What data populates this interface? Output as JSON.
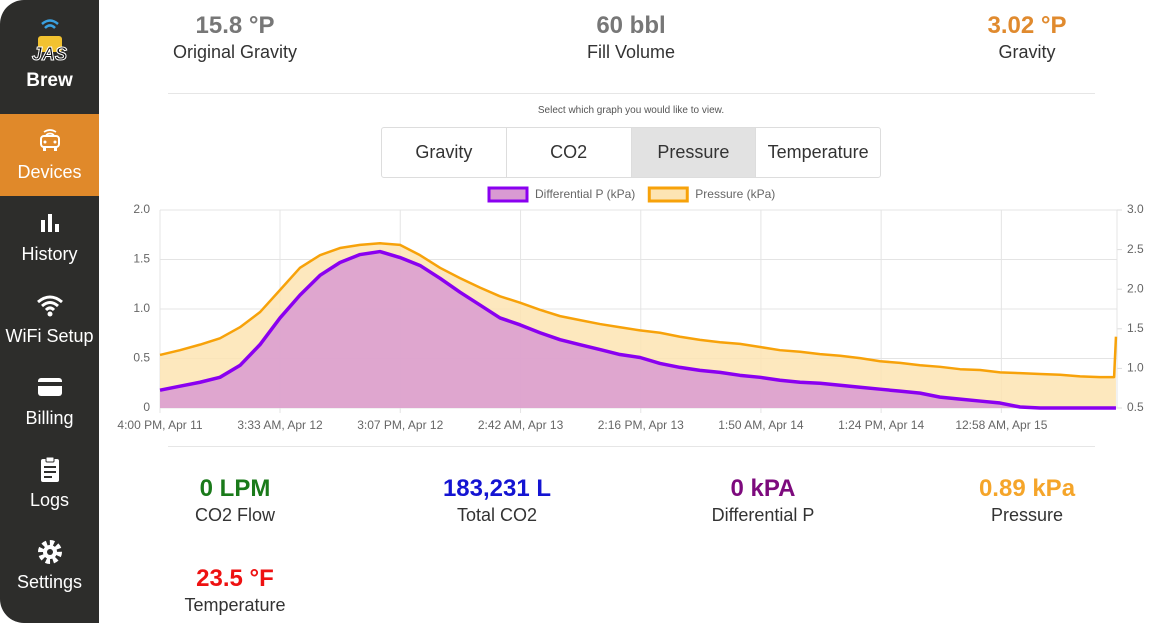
{
  "sidebar": {
    "logo": [
      "JAS",
      "Brew"
    ],
    "menu": [
      "Devices",
      "History",
      "WiFi Setup",
      "Billing",
      "Logs",
      "Settings"
    ],
    "active_index": 0
  },
  "stats_top": [
    {
      "value": "15.8 °P",
      "label": "Original Gravity",
      "color": "#777777"
    },
    {
      "value": "60 bbl",
      "label": "Fill Volume",
      "color": "#777777"
    },
    {
      "value": "3.02 °P",
      "label": "Gravity",
      "color": "#e08a2e"
    }
  ],
  "graph_selector": {
    "hint": "Select which graph you would like to view.",
    "tabs": [
      "Gravity",
      "CO2",
      "Pressure",
      "Temperature"
    ],
    "active_index": 2
  },
  "chart_data": {
    "type": "area",
    "x": [
      0,
      1.92,
      3.85,
      5.77,
      7.7,
      9.62,
      11.55,
      13.47,
      15.4,
      17.32,
      19.25,
      21.17,
      23.1,
      25.02,
      26.95,
      28.87,
      30.8,
      32.72,
      34.65,
      36.57,
      38.5,
      40.42,
      42.35,
      44.27,
      46.2,
      48.12,
      50.05,
      51.97,
      53.9,
      55.82,
      57.75,
      59.67,
      61.6,
      63.52,
      65.45,
      67.37,
      69.3,
      71.22,
      73.15,
      75.07,
      77,
      78.92,
      80.85,
      82.77,
      84.7,
      86.62,
      88.55,
      90.47,
      91.82,
      92.0
    ],
    "series": [
      {
        "name": "Differential P (kPa)",
        "color": "#8a00f0",
        "fill_color": "#d99ad2",
        "axis": "y",
        "values": [
          0.18,
          0.22,
          0.26,
          0.31,
          0.43,
          0.64,
          0.91,
          1.14,
          1.34,
          1.47,
          1.55,
          1.58,
          1.52,
          1.44,
          1.31,
          1.17,
          1.04,
          0.91,
          0.84,
          0.76,
          0.69,
          0.64,
          0.59,
          0.54,
          0.51,
          0.45,
          0.41,
          0.38,
          0.36,
          0.33,
          0.31,
          0.28,
          0.26,
          0.25,
          0.23,
          0.21,
          0.19,
          0.17,
          0.15,
          0.11,
          0.09,
          0.07,
          0.05,
          0.01,
          0,
          0,
          0,
          0,
          0,
          0
        ]
      },
      {
        "name": "Pressure (kPa)",
        "color": "#f7a20a",
        "fill_color": "#fde4b3",
        "axis": "y2",
        "values": [
          1.17,
          1.23,
          1.3,
          1.38,
          1.52,
          1.71,
          1.99,
          2.27,
          2.43,
          2.52,
          2.56,
          2.58,
          2.56,
          2.43,
          2.27,
          2.14,
          2.02,
          1.91,
          1.83,
          1.74,
          1.66,
          1.61,
          1.56,
          1.52,
          1.48,
          1.45,
          1.4,
          1.36,
          1.33,
          1.31,
          1.27,
          1.23,
          1.21,
          1.18,
          1.16,
          1.13,
          1.09,
          1.07,
          1.04,
          1.02,
          0.99,
          0.98,
          0.95,
          0.94,
          0.93,
          0.92,
          0.9,
          0.89,
          0.89,
          1.4
        ]
      }
    ],
    "xlim": [
      0,
      92.1
    ],
    "xticks": [
      {
        "value": 0,
        "label": "4:00 PM, Apr 11"
      },
      {
        "value": 11.55,
        "label": "3:33 AM, Apr 12"
      },
      {
        "value": 23.12,
        "label": "3:07 PM, Apr 12"
      },
      {
        "value": 34.7,
        "label": "2:42 AM, Apr 13"
      },
      {
        "value": 46.27,
        "label": "2:16 PM, Apr 13"
      },
      {
        "value": 57.83,
        "label": "1:50 AM, Apr 14"
      },
      {
        "value": 69.4,
        "label": "1:24 PM, Apr 14"
      },
      {
        "value": 80.97,
        "label": "12:58 AM, Apr 15"
      }
    ],
    "ylim": [
      0,
      2
    ],
    "yticks": [
      0,
      0.5,
      {
        "value": 1,
        "label": "1.0"
      },
      1.5,
      {
        "value": 2,
        "label": "2.0"
      }
    ],
    "y2lim": [
      0.5,
      3
    ],
    "y2ticks": [
      0.5,
      {
        "value": 1,
        "label": "1.0"
      },
      1.5,
      {
        "value": 2,
        "label": "2.0"
      },
      2.5,
      {
        "value": 3,
        "label": "3.0"
      }
    ],
    "grid": true,
    "legend": "top"
  },
  "stats_bottom": [
    {
      "value": "0 LPM",
      "label": "CO2 Flow",
      "color": "#1a7a1a"
    },
    {
      "value": "183,231 L",
      "label": "Total CO2",
      "color": "#1414d2"
    },
    {
      "value": "0 kPA",
      "label": "Differential P",
      "color": "#7d0a7d"
    },
    {
      "value": "0.89 kPa",
      "label": "Pressure",
      "color": "#f5a52a"
    },
    {
      "value": "23.5 °F",
      "label": "Temperature",
      "color": "#ee1111"
    }
  ]
}
